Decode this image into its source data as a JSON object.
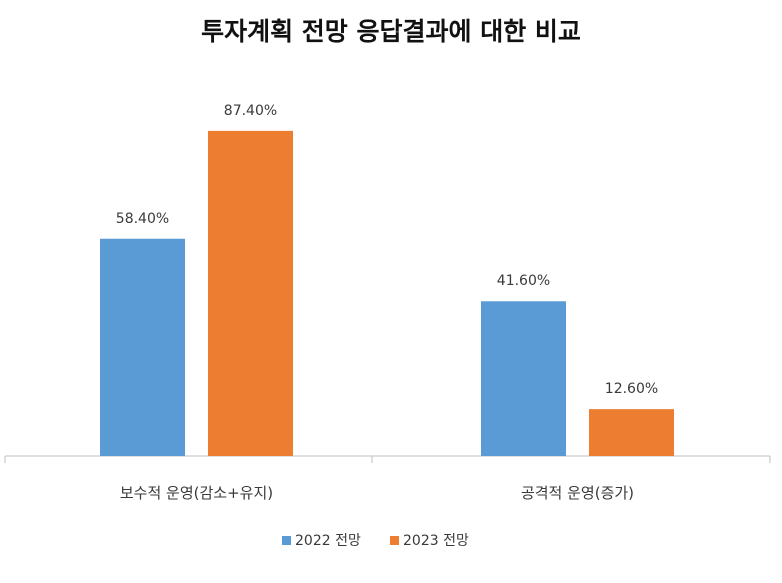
{
  "chart_data": {
    "type": "bar",
    "title": "투자계획 전망 응답결과에 대한 비교",
    "categories": [
      "보수적 운영(감소+유지)",
      "공격적 운영(증가)"
    ],
    "series": [
      {
        "name": "2022 전망",
        "values": [
          58.4,
          41.6
        ],
        "labels": [
          "58.40%",
          "41.60%"
        ],
        "color": "#5b9bd5"
      },
      {
        "name": "2023 전망",
        "values": [
          87.4,
          12.6
        ],
        "labels": [
          "87.40%",
          "12.60%"
        ],
        "color": "#ed7d31"
      }
    ],
    "xlabel": "",
    "ylabel": "",
    "ylim": [
      0,
      100
    ],
    "grid": false,
    "legend": "bottom",
    "axis_color": "#bfbfbf"
  }
}
